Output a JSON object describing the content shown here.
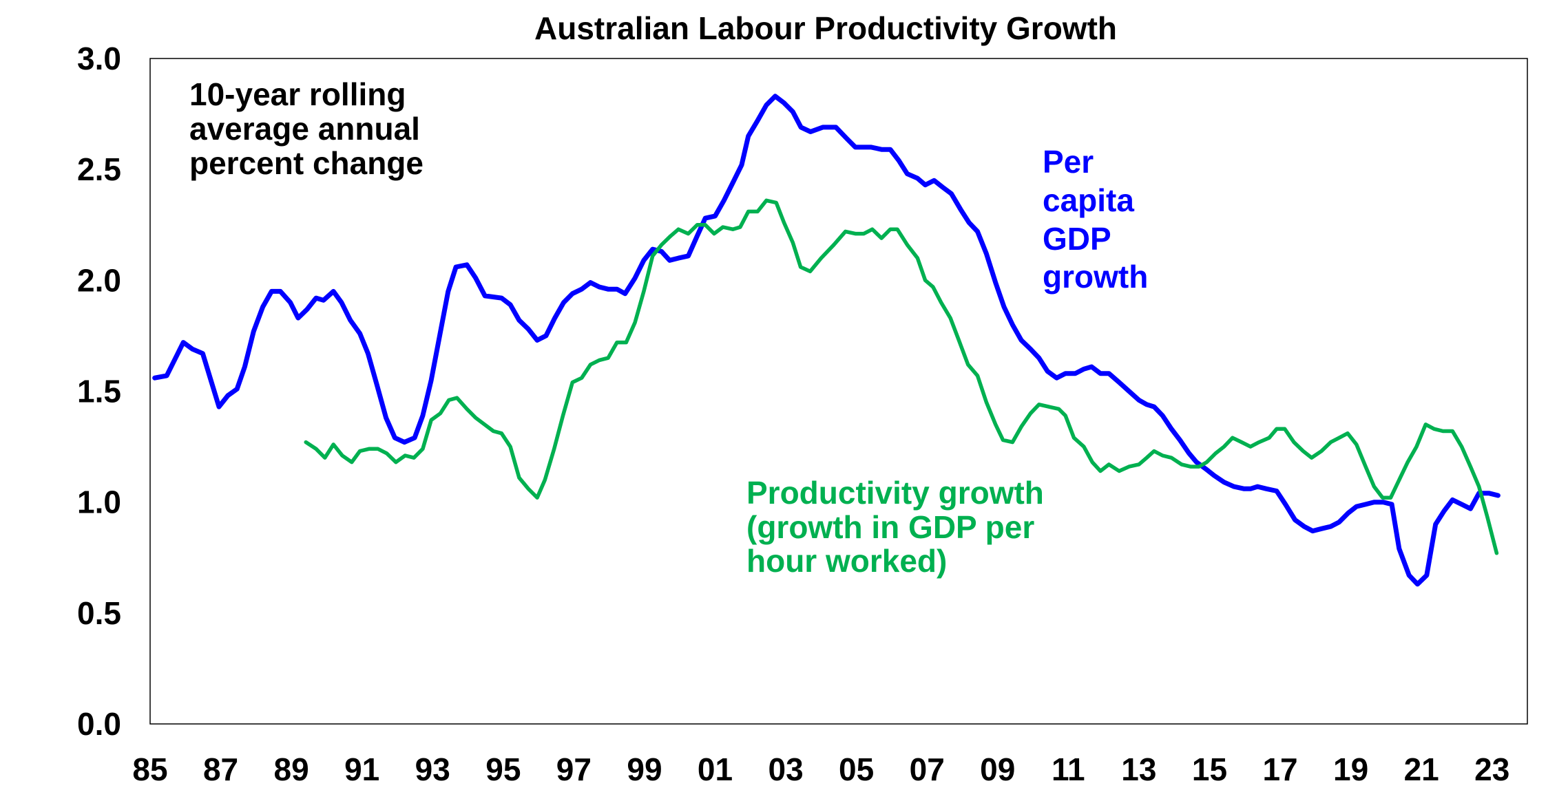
{
  "chart_data": {
    "type": "line",
    "title": "Australian Labour Productivity Growth",
    "xlabel": "",
    "ylabel": "",
    "xlim": [
      1985,
      2024
    ],
    "ylim": [
      0,
      3.0
    ],
    "grid": false,
    "x_ticks": [
      1985,
      1987,
      1989,
      1991,
      1993,
      1995,
      1997,
      1999,
      2001,
      2003,
      2005,
      2007,
      2009,
      2011,
      2013,
      2015,
      2017,
      2019,
      2021,
      2023
    ],
    "x_tick_labels": [
      "85",
      "87",
      "89",
      "91",
      "93",
      "95",
      "97",
      "99",
      "01",
      "03",
      "05",
      "07",
      "09",
      "11",
      "13",
      "15",
      "17",
      "19",
      "21",
      "23"
    ],
    "y_ticks": [
      0,
      0.5,
      1.0,
      1.5,
      2.0,
      2.5,
      3.0
    ],
    "y_tick_labels": [
      "0.0",
      "0.5",
      "1.0",
      "1.5",
      "2.0",
      "2.5",
      "3.0"
    ],
    "annotations": {
      "units_note": [
        "10-year rolling",
        "average annual",
        "percent change"
      ],
      "blue_label": [
        "Per",
        "capita",
        "GDP",
        "growth"
      ],
      "green_label": [
        "Productivity growth",
        "(growth in GDP per",
        "hour worked)"
      ]
    },
    "series": [
      {
        "name": "Per capita GDP growth",
        "color": "#0000FF",
        "points": [
          [
            1985.13,
            1.56
          ],
          [
            1985.47,
            1.57
          ],
          [
            1985.94,
            1.72
          ],
          [
            1986.2,
            1.69
          ],
          [
            1986.49,
            1.67
          ],
          [
            1986.7,
            1.56
          ],
          [
            1986.95,
            1.43
          ],
          [
            1987.2,
            1.48
          ],
          [
            1987.46,
            1.51
          ],
          [
            1987.68,
            1.61
          ],
          [
            1987.93,
            1.77
          ],
          [
            1988.19,
            1.88
          ],
          [
            1988.44,
            1.95
          ],
          [
            1988.69,
            1.95
          ],
          [
            1988.97,
            1.9
          ],
          [
            1989.19,
            1.83
          ],
          [
            1989.45,
            1.87
          ],
          [
            1989.7,
            1.92
          ],
          [
            1989.91,
            1.91
          ],
          [
            1990.19,
            1.95
          ],
          [
            1990.42,
            1.9
          ],
          [
            1990.67,
            1.82
          ],
          [
            1990.94,
            1.76
          ],
          [
            1991.17,
            1.67
          ],
          [
            1991.42,
            1.53
          ],
          [
            1991.68,
            1.38
          ],
          [
            1991.93,
            1.29
          ],
          [
            1992.2,
            1.27
          ],
          [
            1992.49,
            1.29
          ],
          [
            1992.72,
            1.39
          ],
          [
            1992.96,
            1.55
          ],
          [
            1993.2,
            1.75
          ],
          [
            1993.44,
            1.95
          ],
          [
            1993.66,
            2.06
          ],
          [
            1993.97,
            2.07
          ],
          [
            1994.22,
            2.01
          ],
          [
            1994.48,
            1.93
          ],
          [
            1994.95,
            1.92
          ],
          [
            1995.2,
            1.89
          ],
          [
            1995.45,
            1.82
          ],
          [
            1995.71,
            1.78
          ],
          [
            1995.96,
            1.73
          ],
          [
            1996.21,
            1.75
          ],
          [
            1996.46,
            1.83
          ],
          [
            1996.71,
            1.9
          ],
          [
            1996.96,
            1.94
          ],
          [
            1997.22,
            1.96
          ],
          [
            1997.47,
            1.99
          ],
          [
            1997.72,
            1.97
          ],
          [
            1997.97,
            1.96
          ],
          [
            1998.22,
            1.96
          ],
          [
            1998.45,
            1.94
          ],
          [
            1998.73,
            2.01
          ],
          [
            1998.98,
            2.09
          ],
          [
            1999.23,
            2.14
          ],
          [
            1999.48,
            2.13
          ],
          [
            1999.71,
            2.09
          ],
          [
            1999.96,
            2.1
          ],
          [
            2000.24,
            2.11
          ],
          [
            2000.49,
            2.2
          ],
          [
            2000.72,
            2.28
          ],
          [
            2001.0,
            2.29
          ],
          [
            2001.25,
            2.36
          ],
          [
            2001.5,
            2.44
          ],
          [
            2001.75,
            2.52
          ],
          [
            2001.94,
            2.65
          ],
          [
            2002.2,
            2.72
          ],
          [
            2002.45,
            2.79
          ],
          [
            2002.7,
            2.83
          ],
          [
            2002.95,
            2.8
          ],
          [
            2003.2,
            2.76
          ],
          [
            2003.43,
            2.69
          ],
          [
            2003.7,
            2.67
          ],
          [
            2004.05,
            2.69
          ],
          [
            2004.42,
            2.69
          ],
          [
            2004.72,
            2.64
          ],
          [
            2004.97,
            2.6
          ],
          [
            2005.28,
            2.6
          ],
          [
            2005.42,
            2.6
          ],
          [
            2005.71,
            2.59
          ],
          [
            2005.96,
            2.59
          ],
          [
            2006.2,
            2.54
          ],
          [
            2006.44,
            2.48
          ],
          [
            2006.73,
            2.46
          ],
          [
            2006.95,
            2.43
          ],
          [
            2007.2,
            2.45
          ],
          [
            2007.44,
            2.42
          ],
          [
            2007.69,
            2.39
          ],
          [
            2007.95,
            2.32
          ],
          [
            2008.19,
            2.26
          ],
          [
            2008.43,
            2.22
          ],
          [
            2008.68,
            2.12
          ],
          [
            2008.94,
            1.99
          ],
          [
            2009.18,
            1.88
          ],
          [
            2009.42,
            1.8
          ],
          [
            2009.67,
            1.73
          ],
          [
            2009.93,
            1.69
          ],
          [
            2010.17,
            1.65
          ],
          [
            2010.41,
            1.59
          ],
          [
            2010.67,
            1.56
          ],
          [
            2010.92,
            1.58
          ],
          [
            2011.2,
            1.58
          ],
          [
            2011.44,
            1.6
          ],
          [
            2011.66,
            1.61
          ],
          [
            2011.91,
            1.58
          ],
          [
            2012.15,
            1.58
          ],
          [
            2012.44,
            1.54
          ],
          [
            2012.72,
            1.5
          ],
          [
            2013.0,
            1.46
          ],
          [
            2013.22,
            1.44
          ],
          [
            2013.43,
            1.43
          ],
          [
            2013.67,
            1.39
          ],
          [
            2013.92,
            1.33
          ],
          [
            2014.16,
            1.28
          ],
          [
            2014.42,
            1.22
          ],
          [
            2014.63,
            1.18
          ],
          [
            2014.89,
            1.15
          ],
          [
            2015.13,
            1.12
          ],
          [
            2015.41,
            1.09
          ],
          [
            2015.69,
            1.07
          ],
          [
            2015.98,
            1.06
          ],
          [
            2016.16,
            1.06
          ],
          [
            2016.36,
            1.07
          ],
          [
            2016.61,
            1.06
          ],
          [
            2016.9,
            1.05
          ],
          [
            2017.15,
            0.99
          ],
          [
            2017.42,
            0.92
          ],
          [
            2017.68,
            0.89
          ],
          [
            2017.92,
            0.87
          ],
          [
            2018.17,
            0.88
          ],
          [
            2018.43,
            0.89
          ],
          [
            2018.67,
            0.91
          ],
          [
            2018.92,
            0.95
          ],
          [
            2019.16,
            0.98
          ],
          [
            2019.42,
            0.99
          ],
          [
            2019.66,
            1.0
          ],
          [
            2019.92,
            1.0
          ],
          [
            2020.16,
            0.99
          ],
          [
            2020.37,
            0.79
          ],
          [
            2020.65,
            0.67
          ],
          [
            2020.89,
            0.63
          ],
          [
            2021.15,
            0.67
          ],
          [
            2021.4,
            0.9
          ],
          [
            2021.64,
            0.96
          ],
          [
            2021.88,
            1.01
          ],
          [
            2022.14,
            0.99
          ],
          [
            2022.39,
            0.97
          ],
          [
            2022.63,
            1.04
          ],
          [
            2022.92,
            1.04
          ],
          [
            2023.17,
            1.03
          ]
        ]
      },
      {
        "name": "Productivity growth (growth in GDP per hour worked)",
        "color": "#00B050",
        "points": [
          [
            1989.41,
            1.27
          ],
          [
            1989.7,
            1.24
          ],
          [
            1989.95,
            1.2
          ],
          [
            1990.19,
            1.26
          ],
          [
            1990.44,
            1.21
          ],
          [
            1990.71,
            1.18
          ],
          [
            1990.94,
            1.23
          ],
          [
            1991.2,
            1.24
          ],
          [
            1991.45,
            1.24
          ],
          [
            1991.7,
            1.22
          ],
          [
            1991.96,
            1.18
          ],
          [
            1992.22,
            1.21
          ],
          [
            1992.47,
            1.2
          ],
          [
            1992.72,
            1.24
          ],
          [
            1992.96,
            1.37
          ],
          [
            1993.22,
            1.4
          ],
          [
            1993.46,
            1.46
          ],
          [
            1993.69,
            1.47
          ],
          [
            1993.97,
            1.42
          ],
          [
            1994.22,
            1.38
          ],
          [
            1994.47,
            1.35
          ],
          [
            1994.72,
            1.32
          ],
          [
            1994.95,
            1.31
          ],
          [
            1995.2,
            1.25
          ],
          [
            1995.45,
            1.11
          ],
          [
            1995.71,
            1.06
          ],
          [
            1995.96,
            1.02
          ],
          [
            1996.18,
            1.1
          ],
          [
            1996.44,
            1.24
          ],
          [
            1996.69,
            1.39
          ],
          [
            1996.96,
            1.54
          ],
          [
            1997.22,
            1.56
          ],
          [
            1997.47,
            1.62
          ],
          [
            1997.72,
            1.64
          ],
          [
            1997.97,
            1.65
          ],
          [
            1998.22,
            1.72
          ],
          [
            1998.48,
            1.72
          ],
          [
            1998.73,
            1.81
          ],
          [
            1998.98,
            1.95
          ],
          [
            1999.23,
            2.11
          ],
          [
            1999.48,
            2.16
          ],
          [
            1999.74,
            2.2
          ],
          [
            1999.96,
            2.23
          ],
          [
            2000.24,
            2.21
          ],
          [
            2000.49,
            2.25
          ],
          [
            2000.72,
            2.25
          ],
          [
            2000.97,
            2.21
          ],
          [
            2001.22,
            2.24
          ],
          [
            2001.5,
            2.23
          ],
          [
            2001.71,
            2.24
          ],
          [
            2001.94,
            2.31
          ],
          [
            2002.2,
            2.31
          ],
          [
            2002.45,
            2.36
          ],
          [
            2002.73,
            2.35
          ],
          [
            2002.95,
            2.26
          ],
          [
            2003.2,
            2.17
          ],
          [
            2003.42,
            2.06
          ],
          [
            2003.69,
            2.04
          ],
          [
            2004.0,
            2.1
          ],
          [
            2004.36,
            2.16
          ],
          [
            2004.69,
            2.22
          ],
          [
            2004.97,
            2.21
          ],
          [
            2005.21,
            2.21
          ],
          [
            2005.45,
            2.23
          ],
          [
            2005.71,
            2.19
          ],
          [
            2005.96,
            2.23
          ],
          [
            2006.16,
            2.23
          ],
          [
            2006.44,
            2.16
          ],
          [
            2006.73,
            2.1
          ],
          [
            2006.95,
            2.0
          ],
          [
            2007.17,
            1.97
          ],
          [
            2007.4,
            1.9
          ],
          [
            2007.66,
            1.83
          ],
          [
            2007.9,
            1.73
          ],
          [
            2008.16,
            1.62
          ],
          [
            2008.43,
            1.57
          ],
          [
            2008.68,
            1.45
          ],
          [
            2008.94,
            1.35
          ],
          [
            2009.15,
            1.28
          ],
          [
            2009.42,
            1.27
          ],
          [
            2009.67,
            1.34
          ],
          [
            2009.93,
            1.4
          ],
          [
            2010.17,
            1.44
          ],
          [
            2010.45,
            1.43
          ],
          [
            2010.73,
            1.42
          ],
          [
            2010.92,
            1.39
          ],
          [
            2011.16,
            1.29
          ],
          [
            2011.44,
            1.25
          ],
          [
            2011.68,
            1.18
          ],
          [
            2011.91,
            1.14
          ],
          [
            2012.15,
            1.17
          ],
          [
            2012.44,
            1.14
          ],
          [
            2012.72,
            1.16
          ],
          [
            2013.0,
            1.17
          ],
          [
            2013.22,
            1.2
          ],
          [
            2013.43,
            1.23
          ],
          [
            2013.67,
            1.21
          ],
          [
            2013.92,
            1.2
          ],
          [
            2014.21,
            1.17
          ],
          [
            2014.46,
            1.16
          ],
          [
            2014.7,
            1.16
          ],
          [
            2014.92,
            1.18
          ],
          [
            2015.17,
            1.22
          ],
          [
            2015.41,
            1.25
          ],
          [
            2015.65,
            1.29
          ],
          [
            2015.91,
            1.27
          ],
          [
            2016.16,
            1.25
          ],
          [
            2016.4,
            1.27
          ],
          [
            2016.69,
            1.29
          ],
          [
            2016.9,
            1.33
          ],
          [
            2017.13,
            1.33
          ],
          [
            2017.39,
            1.27
          ],
          [
            2017.65,
            1.23
          ],
          [
            2017.89,
            1.2
          ],
          [
            2018.17,
            1.23
          ],
          [
            2018.43,
            1.27
          ],
          [
            2018.67,
            1.29
          ],
          [
            2018.91,
            1.31
          ],
          [
            2019.16,
            1.26
          ],
          [
            2019.42,
            1.16
          ],
          [
            2019.66,
            1.07
          ],
          [
            2019.9,
            1.02
          ],
          [
            2020.13,
            1.02
          ],
          [
            2020.37,
            1.1
          ],
          [
            2020.61,
            1.18
          ],
          [
            2020.86,
            1.25
          ],
          [
            2021.12,
            1.35
          ],
          [
            2021.36,
            1.33
          ],
          [
            2021.61,
            1.32
          ],
          [
            2021.88,
            1.32
          ],
          [
            2022.14,
            1.25
          ],
          [
            2022.39,
            1.16
          ],
          [
            2022.63,
            1.07
          ],
          [
            2022.87,
            0.93
          ],
          [
            2023.13,
            0.77
          ]
        ]
      }
    ]
  }
}
